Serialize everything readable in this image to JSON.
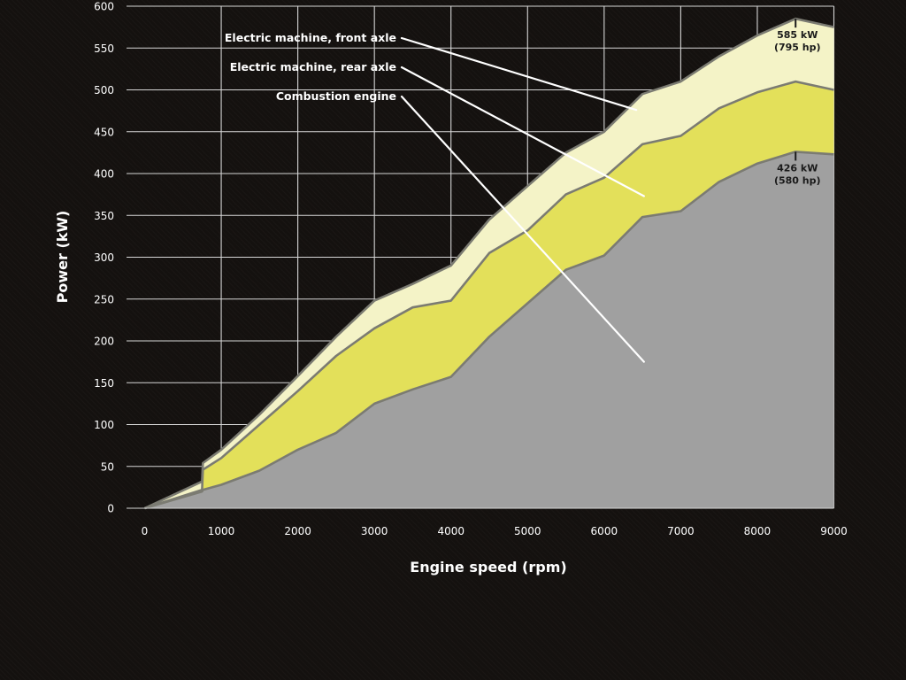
{
  "chart_data": {
    "type": "area",
    "xlabel": "Engine speed (rpm)",
    "ylabel": "Power (kW)",
    "xlim": [
      0,
      9000
    ],
    "ylim": [
      0,
      600
    ],
    "x_ticks": [
      0,
      1000,
      2000,
      3000,
      4000,
      5000,
      6000,
      7000,
      8000,
      9000
    ],
    "y_ticks": [
      0,
      50,
      100,
      150,
      200,
      250,
      300,
      350,
      400,
      450,
      500,
      550,
      600
    ],
    "grid": true,
    "stacking": "stacked",
    "series": [
      {
        "name": "Combustion engine",
        "color": "#a0a0a0",
        "points": [
          [
            0,
            0
          ],
          [
            750,
            20
          ],
          [
            760,
            22
          ],
          [
            1000,
            28
          ],
          [
            1500,
            45
          ],
          [
            2000,
            70
          ],
          [
            2500,
            90
          ],
          [
            3000,
            125
          ],
          [
            3500,
            142
          ],
          [
            4000,
            157
          ],
          [
            4500,
            205
          ],
          [
            5000,
            245
          ],
          [
            5500,
            285
          ],
          [
            6000,
            302
          ],
          [
            6500,
            348
          ],
          [
            7000,
            355
          ],
          [
            7500,
            390
          ],
          [
            8000,
            412
          ],
          [
            8500,
            426
          ],
          [
            9000,
            423
          ]
        ]
      },
      {
        "name": "Electric machine, rear axle",
        "color": "#e3e05a",
        "cumulative_points": [
          [
            0,
            0
          ],
          [
            750,
            22
          ],
          [
            760,
            46
          ],
          [
            1000,
            60
          ],
          [
            1500,
            100
          ],
          [
            2000,
            140
          ],
          [
            2500,
            182
          ],
          [
            3000,
            215
          ],
          [
            3500,
            240
          ],
          [
            4000,
            248
          ],
          [
            4500,
            305
          ],
          [
            5000,
            332
          ],
          [
            5500,
            375
          ],
          [
            6000,
            395
          ],
          [
            6500,
            435
          ],
          [
            7000,
            445
          ],
          [
            7500,
            478
          ],
          [
            8000,
            497
          ],
          [
            8500,
            510
          ],
          [
            9000,
            500
          ]
        ]
      },
      {
        "name": "Electric machine, front axle",
        "color": "#f4f3c7",
        "cumulative_points": [
          [
            0,
            0
          ],
          [
            750,
            32
          ],
          [
            760,
            54
          ],
          [
            1000,
            70
          ],
          [
            1500,
            112
          ],
          [
            2000,
            158
          ],
          [
            2500,
            205
          ],
          [
            3000,
            248
          ],
          [
            3500,
            268
          ],
          [
            4000,
            290
          ],
          [
            4500,
            345
          ],
          [
            5000,
            385
          ],
          [
            5500,
            425
          ],
          [
            6000,
            450
          ],
          [
            6500,
            495
          ],
          [
            7000,
            510
          ],
          [
            7500,
            540
          ],
          [
            8000,
            565
          ],
          [
            8500,
            585
          ],
          [
            9000,
            575
          ]
        ]
      }
    ],
    "annotations": [
      {
        "text_line1": "585 kW",
        "text_line2": "(795 hp)",
        "x": 8500,
        "y": 585
      },
      {
        "text_line1": "426 kW",
        "text_line2": "(580 hp)",
        "x": 8500,
        "y": 426
      }
    ],
    "callouts": [
      {
        "label": "Electric machine, front axle",
        "target": [
          6420,
          476
        ]
      },
      {
        "label": "Electric machine, rear axle",
        "target": [
          6520,
          373
        ]
      },
      {
        "label": "Combustion engine",
        "target": [
          6520,
          175
        ]
      }
    ]
  }
}
